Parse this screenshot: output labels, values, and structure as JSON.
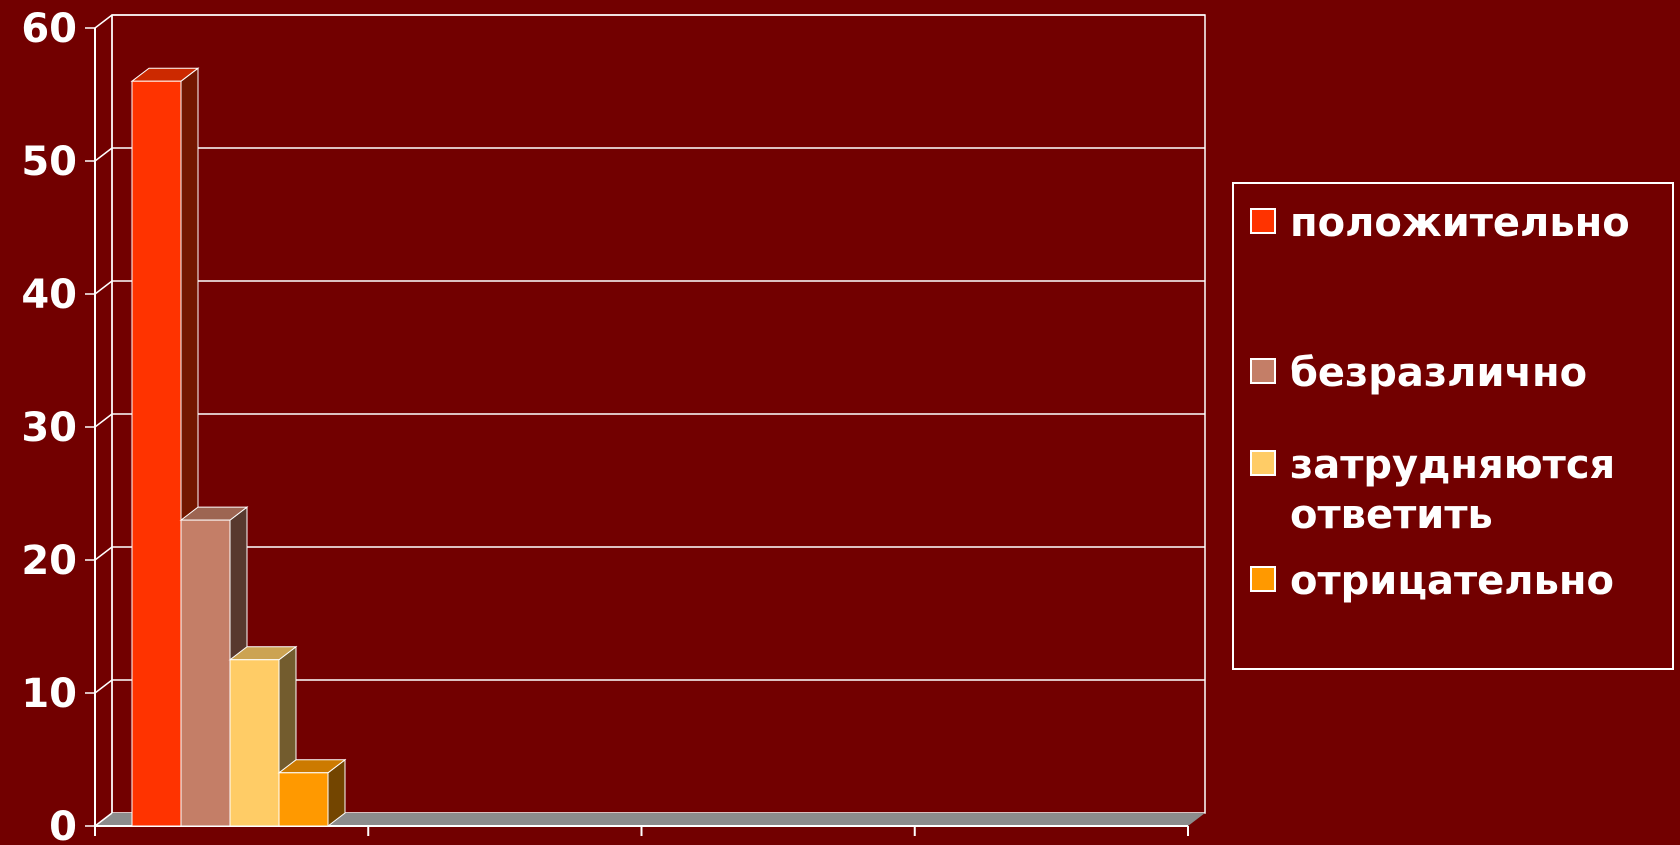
{
  "colors": {
    "background": "#720000",
    "gridline": "#ffffff",
    "floor": "#8c8c8c"
  },
  "chart_data": {
    "type": "bar",
    "style": "3d-clustered-column",
    "categories": [
      ""
    ],
    "ylim": [
      0,
      60
    ],
    "yticks": [
      "0",
      "10",
      "20",
      "30",
      "40",
      "50",
      "60"
    ],
    "grid": true,
    "legend_position": "right",
    "series": [
      {
        "name": "положительно",
        "values": [
          56
        ],
        "color": "#ff3300"
      },
      {
        "name": "безразлично",
        "values": [
          23
        ],
        "color": "#c47e67"
      },
      {
        "name": "затрудняются\nответить",
        "values": [
          12.5
        ],
        "color": "#ffcc66"
      },
      {
        "name": "отрицательно",
        "values": [
          4
        ],
        "color": "#ff9900"
      }
    ]
  }
}
